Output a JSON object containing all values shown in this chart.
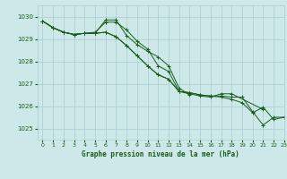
{
  "title": "Graphe pression niveau de la mer (hPa)",
  "bg_color": "#cce8e8",
  "grid_color": "#aacece",
  "line_color": "#1a5c1a",
  "xlim": [
    -0.5,
    23
  ],
  "ylim": [
    1024.5,
    1030.5
  ],
  "yticks": [
    1025,
    1026,
    1027,
    1028,
    1029,
    1030
  ],
  "xticks": [
    0,
    1,
    2,
    3,
    4,
    5,
    6,
    7,
    8,
    9,
    10,
    11,
    12,
    13,
    14,
    15,
    16,
    17,
    18,
    19,
    20,
    21,
    22,
    23
  ],
  "series": [
    [
      1029.8,
      1029.5,
      1029.3,
      1029.2,
      1029.25,
      1029.3,
      1029.75,
      1029.75,
      1029.4,
      1028.9,
      1028.55,
      1027.8,
      1027.55,
      1026.65,
      1026.55,
      1026.45,
      1026.4,
      1026.55,
      1026.55,
      null,
      null,
      1025.85,
      null,
      null
    ],
    [
      1029.8,
      1029.5,
      1029.3,
      1029.2,
      1029.25,
      1029.25,
      1029.85,
      1029.85,
      1029.15,
      1028.75,
      1028.45,
      1028.2,
      1027.8,
      1026.8,
      1026.5,
      null,
      null,
      null,
      null,
      null,
      null,
      null,
      null,
      null
    ],
    [
      1029.8,
      1029.5,
      1029.3,
      1029.2,
      1029.25,
      1029.25,
      1029.3,
      1029.1,
      1028.7,
      1028.25,
      1027.8,
      1027.4,
      1027.2,
      1026.65,
      1026.6,
      1026.5,
      1026.45,
      1026.45,
      1026.4,
      1026.4,
      1025.75,
      1025.15,
      1025.5,
      1025.5
    ],
    [
      1029.8,
      1029.5,
      1029.3,
      1029.2,
      1029.25,
      1029.25,
      1029.3,
      1029.1,
      1028.7,
      1028.25,
      1027.8,
      1027.4,
      1027.2,
      1026.65,
      1026.6,
      1026.5,
      1026.45,
      1026.4,
      1026.3,
      1026.15,
      1025.7,
      1025.95,
      1025.4,
      1025.5
    ]
  ]
}
